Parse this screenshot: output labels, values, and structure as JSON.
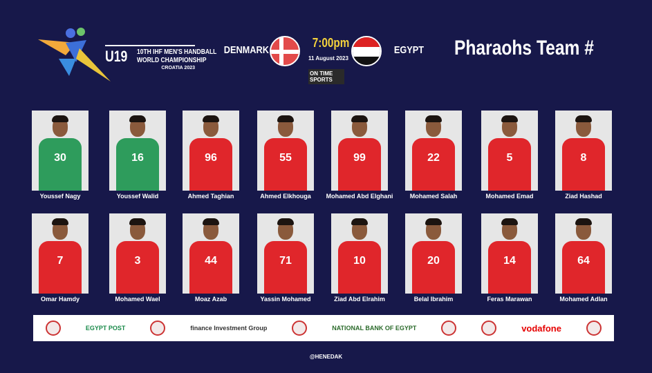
{
  "event": {
    "u19": "U19",
    "line1": "10TH IHF MEN'S HANDBALL",
    "line2": "WORLD CHAMPIONSHIP",
    "line3": "CROATIA 2023"
  },
  "match": {
    "home": "DENMARK",
    "away": "EGYPT",
    "time": "7:00pm",
    "date": "11 August 2023",
    "broadcaster": "ON TIME SPORTS"
  },
  "title": "Pharaohs Team #",
  "colors": {
    "background": "#17184a",
    "time": "#f4d23c",
    "goalkeeper_jersey": "#2e9c5c",
    "field_jersey": "#e0262b"
  },
  "players": [
    {
      "name": "Youssef Nagy",
      "number": "30",
      "kit": "green"
    },
    {
      "name": "Youssef Walid",
      "number": "16",
      "kit": "green"
    },
    {
      "name": "Ahmed Taghian",
      "number": "96",
      "kit": "red"
    },
    {
      "name": "Ahmed Elkhouga",
      "number": "55",
      "kit": "red"
    },
    {
      "name": "Mohamed Abd Elghani",
      "number": "99",
      "kit": "red"
    },
    {
      "name": "Mohamed Salah",
      "number": "22",
      "kit": "red"
    },
    {
      "name": "Mohamed Emad",
      "number": "5",
      "kit": "red"
    },
    {
      "name": "Ziad Hashad",
      "number": "8",
      "kit": "red"
    },
    {
      "name": "Omar  Hamdy",
      "number": "7",
      "kit": "red"
    },
    {
      "name": "Mohamed Wael",
      "number": "3",
      "kit": "red"
    },
    {
      "name": "Moaz Azab",
      "number": "44",
      "kit": "red"
    },
    {
      "name": "Yassin Mohamed",
      "number": "71",
      "kit": "red"
    },
    {
      "name": "Ziad Abd Elrahim",
      "number": "10",
      "kit": "red"
    },
    {
      "name": "Belal Ibrahim",
      "number": "20",
      "kit": "red"
    },
    {
      "name": "Feras Marawan",
      "number": "14",
      "kit": "red"
    },
    {
      "name": "Mohamed Adlan",
      "number": "64",
      "kit": "red"
    }
  ],
  "sponsors": [
    "EGYPT POST",
    "finance Investment Group",
    "NATIONAL BANK OF EGYPT",
    "vodafone"
  ],
  "handle": "@HENEDAK"
}
